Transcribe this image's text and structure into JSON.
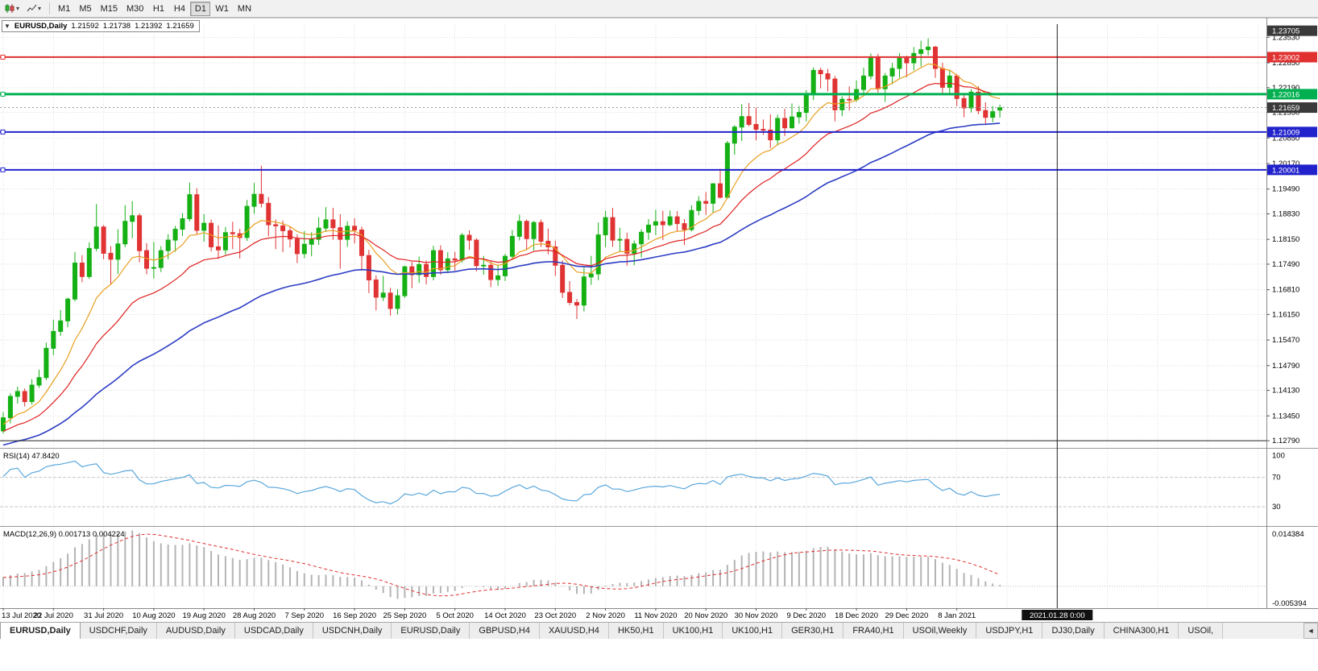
{
  "toolbar": {
    "timeframes": [
      "M1",
      "M5",
      "M15",
      "M30",
      "H1",
      "H4",
      "D1",
      "W1",
      "MN"
    ],
    "active": "D1"
  },
  "chart_header": {
    "collapse_icon": "▼",
    "title": "EURUSD,Daily",
    "open": "1.21592",
    "high": "1.21738",
    "low": "1.21392",
    "close": "1.21659"
  },
  "price_axis": {
    "top_marker": {
      "price": 1.23705,
      "label": "1.23705"
    },
    "current": {
      "price": 1.21659,
      "label": "1.21659"
    }
  },
  "hlines": [
    {
      "price": 1.23002,
      "label": "1.23002",
      "color": "#e03030",
      "width": 2,
      "handle": true
    },
    {
      "price": 1.22016,
      "label": "1.22016",
      "color": "#00b050",
      "width": 3,
      "handle": true
    },
    {
      "price": 1.21009,
      "label": "1.21009",
      "color": "#2222cc",
      "width": 2,
      "handle": true
    },
    {
      "price": 1.20001,
      "label": "1.20001",
      "color": "#2222cc",
      "width": 2,
      "handle": true
    },
    {
      "price": 1.1279,
      "label": "",
      "color": "#202020",
      "width": 1,
      "handle": false
    }
  ],
  "crosshair": {
    "bar_index": 147,
    "date_label": "2021.01.28 0:00"
  },
  "indicators": {
    "rsi_label": "RSI(14) 47.8420",
    "macd_label": "MACD(12,26,9) 0.001713 0.004224",
    "macd_axis_top": "0.014384",
    "macd_axis_bottom": "-0.005394"
  },
  "colors": {
    "bull": "#14b014",
    "bear": "#e03333",
    "grid": "#dedede",
    "rsi_line": "#5aa7dc",
    "macd_hist": "#b4b4b4",
    "macd_signal": "#e03030",
    "axis_text": "#000000"
  },
  "chart_data": {
    "type": "candlestick",
    "symbol": "EURUSD",
    "period": "Daily",
    "title": "EURUSD,Daily 1.21592 1.21738 1.21392 1.21659",
    "ylim": [
      1.1262,
      1.2388
    ],
    "price_ticks": [
      "1.23530",
      "1.22850",
      "1.22190",
      "1.21530",
      "1.20850",
      "1.20170",
      "1.19490",
      "1.18830",
      "1.18150",
      "1.17490",
      "1.16810",
      "1.16150",
      "1.15470",
      "1.14790",
      "1.14130",
      "1.13450",
      "1.12790"
    ],
    "x_labels": [
      "13 Jul 2020",
      "22 Jul 2020",
      "31 Jul 2020",
      "10 Aug 2020",
      "19 Aug 2020",
      "28 Aug 2020",
      "7 Sep 2020",
      "16 Sep 2020",
      "25 Sep 2020",
      "5 Oct 2020",
      "14 Oct 2020",
      "23 Oct 2020",
      "2 Nov 2020",
      "11 Nov 2020",
      "20 Nov 2020",
      "30 Nov 2020",
      "9 Dec 2020",
      "18 Dec 2020",
      "29 Dec 2020",
      "8 Jan 2021"
    ],
    "label_every": 7,
    "bar_spacing": 8.9,
    "x_start": 4,
    "ma": [
      {
        "period": 10,
        "color": "#e8a020",
        "width": 1.2,
        "name": "ma-fast-orange"
      },
      {
        "period": 21,
        "color": "#e02020",
        "width": 1.2,
        "name": "ma-mid-red"
      },
      {
        "period": 50,
        "color": "#2c3cc4",
        "width": 1.6,
        "name": "ma-slow-blue"
      }
    ],
    "rsi_period": 14,
    "rsi_ylim": [
      5,
      108
    ],
    "rsi_levels": [
      100,
      70,
      30
    ],
    "macd_periods": [
      12,
      26,
      9
    ],
    "macd_ylim": [
      -0.0054,
      0.0144
    ],
    "pre_closes": [
      1.1175,
      1.1182,
      1.119,
      1.1178,
      1.1186,
      1.1195,
      1.1203,
      1.1192,
      1.12,
      1.121,
      1.1198,
      1.1205,
      1.1214,
      1.1222,
      1.121,
      1.1218,
      1.1227,
      1.1235,
      1.1224,
      1.1231,
      1.124,
      1.1248,
      1.1237,
      1.1245,
      1.1254,
      1.1262,
      1.125,
      1.1258,
      1.1267,
      1.1275,
      1.1263,
      1.1271,
      1.128,
      1.1288,
      1.1276,
      1.1284,
      1.1293,
      1.1301,
      1.129,
      1.1297,
      1.1306,
      1.1314,
      1.1302,
      1.131,
      1.1319,
      1.1327,
      1.1315,
      1.1322,
      1.1331,
      1.1338
    ],
    "candles": [
      [
        1.1305,
        1.1355,
        1.1298,
        1.134
      ],
      [
        1.134,
        1.1405,
        1.1325,
        1.1397
      ],
      [
        1.1397,
        1.1423,
        1.1378,
        1.141
      ],
      [
        1.141,
        1.1418,
        1.137,
        1.1383
      ],
      [
        1.1383,
        1.1443,
        1.1375,
        1.1427
      ],
      [
        1.1427,
        1.1468,
        1.142,
        1.1447
      ],
      [
        1.1447,
        1.154,
        1.144,
        1.1525
      ],
      [
        1.1525,
        1.1601,
        1.1507,
        1.157
      ],
      [
        1.157,
        1.1627,
        1.1558,
        1.1598
      ],
      [
        1.1598,
        1.166,
        1.1581,
        1.1656
      ],
      [
        1.1656,
        1.1781,
        1.165,
        1.1752
      ],
      [
        1.1752,
        1.1773,
        1.1701,
        1.1716
      ],
      [
        1.1716,
        1.1807,
        1.171,
        1.1791
      ],
      [
        1.1791,
        1.1909,
        1.1783,
        1.1848
      ],
      [
        1.1848,
        1.1853,
        1.1762,
        1.1778
      ],
      [
        1.1778,
        1.1797,
        1.1696,
        1.1762
      ],
      [
        1.1762,
        1.1842,
        1.1723,
        1.1803
      ],
      [
        1.1803,
        1.1906,
        1.1794,
        1.1863
      ],
      [
        1.1863,
        1.1917,
        1.1818,
        1.1878
      ],
      [
        1.1878,
        1.1884,
        1.1754,
        1.1785
      ],
      [
        1.1785,
        1.1805,
        1.1722,
        1.1738
      ],
      [
        1.1738,
        1.1808,
        1.1711,
        1.174
      ],
      [
        1.174,
        1.1797,
        1.1728,
        1.1785
      ],
      [
        1.1785,
        1.1829,
        1.1762,
        1.1813
      ],
      [
        1.1813,
        1.1851,
        1.1782,
        1.1842
      ],
      [
        1.1842,
        1.1885,
        1.1824,
        1.187
      ],
      [
        1.187,
        1.1966,
        1.1863,
        1.1934
      ],
      [
        1.1934,
        1.1951,
        1.1829,
        1.1839
      ],
      [
        1.1839,
        1.1882,
        1.1809,
        1.1858
      ],
      [
        1.1858,
        1.1868,
        1.1783,
        1.1795
      ],
      [
        1.1795,
        1.1852,
        1.1763,
        1.1787
      ],
      [
        1.1787,
        1.1848,
        1.1774,
        1.1833
      ],
      [
        1.1833,
        1.1862,
        1.1789,
        1.183
      ],
      [
        1.183,
        1.1843,
        1.1764,
        1.182
      ],
      [
        1.182,
        1.192,
        1.1811,
        1.1903
      ],
      [
        1.1903,
        1.1965,
        1.1883,
        1.1935
      ],
      [
        1.1935,
        1.2011,
        1.19,
        1.1911
      ],
      [
        1.1911,
        1.1928,
        1.1823,
        1.1854
      ],
      [
        1.1854,
        1.1868,
        1.1789,
        1.1851
      ],
      [
        1.1851,
        1.1865,
        1.1781,
        1.1838
      ],
      [
        1.1838,
        1.185,
        1.1794,
        1.1816
      ],
      [
        1.1816,
        1.1828,
        1.1752,
        1.1777
      ],
      [
        1.1777,
        1.1837,
        1.1765,
        1.1802
      ],
      [
        1.1802,
        1.1834,
        1.177,
        1.1815
      ],
      [
        1.1815,
        1.1874,
        1.18,
        1.1845
      ],
      [
        1.1845,
        1.1901,
        1.1835,
        1.1867
      ],
      [
        1.1867,
        1.1899,
        1.1814,
        1.1846
      ],
      [
        1.1846,
        1.1882,
        1.1737,
        1.1815
      ],
      [
        1.1815,
        1.1863,
        1.1795,
        1.185
      ],
      [
        1.185,
        1.1871,
        1.1804,
        1.184
      ],
      [
        1.184,
        1.1849,
        1.1732,
        1.1772
      ],
      [
        1.1772,
        1.1787,
        1.1672,
        1.1707
      ],
      [
        1.1707,
        1.1719,
        1.1626,
        1.1661
      ],
      [
        1.1661,
        1.1718,
        1.1651,
        1.1672
      ],
      [
        1.1672,
        1.1686,
        1.1612,
        1.1631
      ],
      [
        1.1631,
        1.1682,
        1.1615,
        1.1665
      ],
      [
        1.1665,
        1.1745,
        1.1659,
        1.1742
      ],
      [
        1.1742,
        1.1755,
        1.1685,
        1.1721
      ],
      [
        1.1721,
        1.1769,
        1.1699,
        1.1748
      ],
      [
        1.1748,
        1.1759,
        1.1695,
        1.1716
      ],
      [
        1.1716,
        1.1798,
        1.1706,
        1.1785
      ],
      [
        1.1785,
        1.1799,
        1.1721,
        1.1734
      ],
      [
        1.1734,
        1.1781,
        1.1725,
        1.1763
      ],
      [
        1.1763,
        1.1782,
        1.1732,
        1.176
      ],
      [
        1.176,
        1.1832,
        1.1753,
        1.1826
      ],
      [
        1.1826,
        1.1839,
        1.1787,
        1.1813
      ],
      [
        1.1813,
        1.1818,
        1.173,
        1.1745
      ],
      [
        1.1745,
        1.1771,
        1.1721,
        1.1746
      ],
      [
        1.1746,
        1.1757,
        1.1688,
        1.1708
      ],
      [
        1.1708,
        1.1747,
        1.1691,
        1.1718
      ],
      [
        1.1718,
        1.1777,
        1.1704,
        1.177
      ],
      [
        1.177,
        1.184,
        1.1762,
        1.1823
      ],
      [
        1.1823,
        1.1881,
        1.1812,
        1.1863
      ],
      [
        1.1863,
        1.1868,
        1.1786,
        1.1817
      ],
      [
        1.1817,
        1.1864,
        1.1785,
        1.186
      ],
      [
        1.186,
        1.1868,
        1.1795,
        1.181
      ],
      [
        1.181,
        1.1844,
        1.1775,
        1.1795
      ],
      [
        1.1795,
        1.1812,
        1.1718,
        1.1746
      ],
      [
        1.1746,
        1.1759,
        1.1659,
        1.1674
      ],
      [
        1.1674,
        1.1704,
        1.164,
        1.1647
      ],
      [
        1.1647,
        1.1656,
        1.1603,
        1.164
      ],
      [
        1.164,
        1.174,
        1.1623,
        1.1715
      ],
      [
        1.1715,
        1.1771,
        1.1694,
        1.1723
      ],
      [
        1.1723,
        1.186,
        1.1706,
        1.1827
      ],
      [
        1.1827,
        1.1891,
        1.1794,
        1.1873
      ],
      [
        1.1873,
        1.1899,
        1.1795,
        1.1813
      ],
      [
        1.1813,
        1.1846,
        1.1781,
        1.1815
      ],
      [
        1.1815,
        1.1833,
        1.1745,
        1.1778
      ],
      [
        1.1778,
        1.1812,
        1.1746,
        1.1803
      ],
      [
        1.1803,
        1.1842,
        1.1767,
        1.1834
      ],
      [
        1.1834,
        1.1869,
        1.1814,
        1.1853
      ],
      [
        1.1853,
        1.1894,
        1.1826,
        1.1862
      ],
      [
        1.1862,
        1.1891,
        1.1813,
        1.1854
      ],
      [
        1.1854,
        1.1892,
        1.185,
        1.1875
      ],
      [
        1.1875,
        1.189,
        1.1837,
        1.1857
      ],
      [
        1.1857,
        1.1869,
        1.18,
        1.1841
      ],
      [
        1.1841,
        1.1906,
        1.1836,
        1.1892
      ],
      [
        1.1892,
        1.193,
        1.1879,
        1.1916
      ],
      [
        1.1916,
        1.1941,
        1.188,
        1.1911
      ],
      [
        1.1911,
        1.1965,
        1.1886,
        1.1963
      ],
      [
        1.1963,
        1.2003,
        1.1924,
        1.1927
      ],
      [
        1.1927,
        1.2077,
        1.1923,
        1.2071
      ],
      [
        1.2071,
        1.2119,
        1.204,
        1.2114
      ],
      [
        1.2114,
        1.2175,
        1.2077,
        1.2142
      ],
      [
        1.2142,
        1.2178,
        1.2116,
        1.2121
      ],
      [
        1.2121,
        1.2166,
        1.2079,
        1.2108
      ],
      [
        1.2108,
        1.2134,
        1.2093,
        1.2106
      ],
      [
        1.2106,
        1.2148,
        1.2058,
        1.208
      ],
      [
        1.208,
        1.2147,
        1.2065,
        1.2137
      ],
      [
        1.2137,
        1.2163,
        1.209,
        1.2112
      ],
      [
        1.2112,
        1.2177,
        1.211,
        1.2141
      ],
      [
        1.2141,
        1.217,
        1.2123,
        1.2153
      ],
      [
        1.2153,
        1.2212,
        1.2129,
        1.22
      ],
      [
        1.22,
        1.2273,
        1.2186,
        1.2265
      ],
      [
        1.2265,
        1.2272,
        1.2217,
        1.2256
      ],
      [
        1.2256,
        1.2269,
        1.2209,
        1.2242
      ],
      [
        1.2242,
        1.225,
        1.2129,
        1.216
      ],
      [
        1.216,
        1.2196,
        1.2143,
        1.2188
      ],
      [
        1.2188,
        1.2222,
        1.2158,
        1.2187
      ],
      [
        1.2187,
        1.2238,
        1.2181,
        1.2214
      ],
      [
        1.2214,
        1.2272,
        1.2204,
        1.225
      ],
      [
        1.225,
        1.231,
        1.2241,
        1.2298
      ],
      [
        1.2298,
        1.2309,
        1.2206,
        1.2216
      ],
      [
        1.2216,
        1.2258,
        1.2181,
        1.225
      ],
      [
        1.225,
        1.2285,
        1.2228,
        1.227
      ],
      [
        1.227,
        1.2311,
        1.2245,
        1.2297
      ],
      [
        1.2297,
        1.2304,
        1.2247,
        1.2285
      ],
      [
        1.2285,
        1.2327,
        1.2265,
        1.231
      ],
      [
        1.231,
        1.2344,
        1.2275,
        1.232
      ],
      [
        1.232,
        1.235,
        1.2305,
        1.2327
      ],
      [
        1.2327,
        1.233,
        1.2245,
        1.227
      ],
      [
        1.227,
        1.2285,
        1.2205,
        1.222
      ],
      [
        1.222,
        1.2267,
        1.2204,
        1.225
      ],
      [
        1.225,
        1.2255,
        1.217,
        1.219
      ],
      [
        1.219,
        1.2205,
        1.214,
        1.2165
      ],
      [
        1.2165,
        1.2215,
        1.2153,
        1.2207
      ],
      [
        1.2207,
        1.2223,
        1.2148,
        1.2158
      ],
      [
        1.2158,
        1.218,
        1.212,
        1.214
      ],
      [
        1.214,
        1.217,
        1.2127,
        1.2155
      ],
      [
        1.21592,
        1.21738,
        1.21392,
        1.21659
      ]
    ]
  },
  "tabs": {
    "scroll_icon": "◄",
    "items": [
      {
        "label": "EURUSD,Daily",
        "active": true
      },
      {
        "label": "USDCHF,Daily",
        "active": false
      },
      {
        "label": "AUDUSD,Daily",
        "active": false
      },
      {
        "label": "USDCAD,Daily",
        "active": false
      },
      {
        "label": "USDCNH,Daily",
        "active": false
      },
      {
        "label": "EURUSD,Daily",
        "active": false
      },
      {
        "label": "GBPUSD,H4",
        "active": false
      },
      {
        "label": "XAUUSD,H4",
        "active": false
      },
      {
        "label": "HK50,H1",
        "active": false
      },
      {
        "label": "UK100,H1",
        "active": false
      },
      {
        "label": "UK100,H1",
        "active": false
      },
      {
        "label": "GER30,H1",
        "active": false
      },
      {
        "label": "FRA40,H1",
        "active": false
      },
      {
        "label": "USOil,Weekly",
        "active": false
      },
      {
        "label": "USDJPY,H1",
        "active": false
      },
      {
        "label": "DJ30,Daily",
        "active": false
      },
      {
        "label": "CHINA300,H1",
        "active": false
      },
      {
        "label": "USOil,",
        "active": false
      }
    ]
  }
}
